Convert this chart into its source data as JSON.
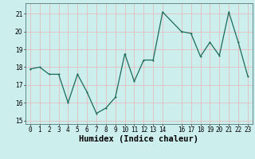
{
  "x": [
    0,
    1,
    2,
    3,
    4,
    5,
    6,
    7,
    8,
    9,
    10,
    11,
    12,
    13,
    14,
    16,
    17,
    18,
    19,
    20,
    21,
    22,
    23
  ],
  "y": [
    17.9,
    18.0,
    17.6,
    17.6,
    16.0,
    17.6,
    16.6,
    15.4,
    15.7,
    16.3,
    18.75,
    17.2,
    18.4,
    18.4,
    21.1,
    20.0,
    19.9,
    18.6,
    19.4,
    18.65,
    21.1,
    19.4,
    17.5
  ],
  "line_color": "#1a6b5a",
  "marker": ".",
  "marker_size": 3,
  "bg_color": "#cceeed",
  "grid_color": "#e8b4b4",
  "xlabel": "Humidex (Indice chaleur)",
  "ylim": [
    14.8,
    21.6
  ],
  "xlim": [
    -0.5,
    23.5
  ],
  "yticks": [
    15,
    16,
    17,
    18,
    19,
    20,
    21
  ],
  "xticks": [
    0,
    1,
    2,
    3,
    4,
    5,
    6,
    7,
    8,
    9,
    10,
    11,
    12,
    13,
    14,
    16,
    17,
    18,
    19,
    20,
    21,
    22,
    23
  ],
  "tick_label_fontsize": 5.5,
  "xlabel_fontsize": 7.5
}
